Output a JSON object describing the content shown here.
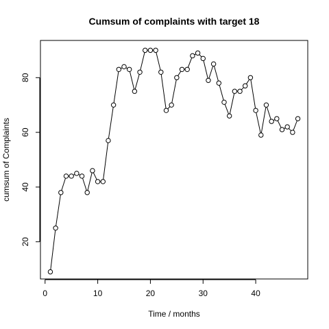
{
  "chart_data": {
    "type": "line",
    "title": "Cumsum of complaints with target 18",
    "xlabel": "Time / months",
    "ylabel": "cumsum of Complaints",
    "xlim": [
      -0.88,
      49.88
    ],
    "ylim": [
      6.4,
      93.6
    ],
    "xticks": [
      0,
      10,
      20,
      30,
      40
    ],
    "yticks": [
      20,
      40,
      60,
      80
    ],
    "grid": false,
    "markers": "open-circle",
    "x": [
      1,
      2,
      3,
      4,
      5,
      6,
      7,
      8,
      9,
      10,
      11,
      12,
      13,
      14,
      15,
      16,
      17,
      18,
      19,
      20,
      21,
      22,
      23,
      24,
      25,
      26,
      27,
      28,
      29,
      30,
      31,
      32,
      33,
      34,
      35,
      36,
      37,
      38,
      39,
      40,
      41,
      42,
      43,
      44,
      45,
      46,
      47,
      48
    ],
    "y": [
      9,
      25,
      38,
      44,
      44,
      45,
      44,
      38,
      46,
      42,
      42,
      57,
      70,
      83,
      84,
      83,
      75,
      82,
      90,
      90,
      90,
      82,
      68,
      70,
      80,
      83,
      83,
      88,
      89,
      87,
      79,
      85,
      78,
      71,
      66,
      75,
      75,
      77,
      80,
      68,
      59,
      70,
      64,
      65,
      61,
      62,
      60,
      65
    ]
  }
}
